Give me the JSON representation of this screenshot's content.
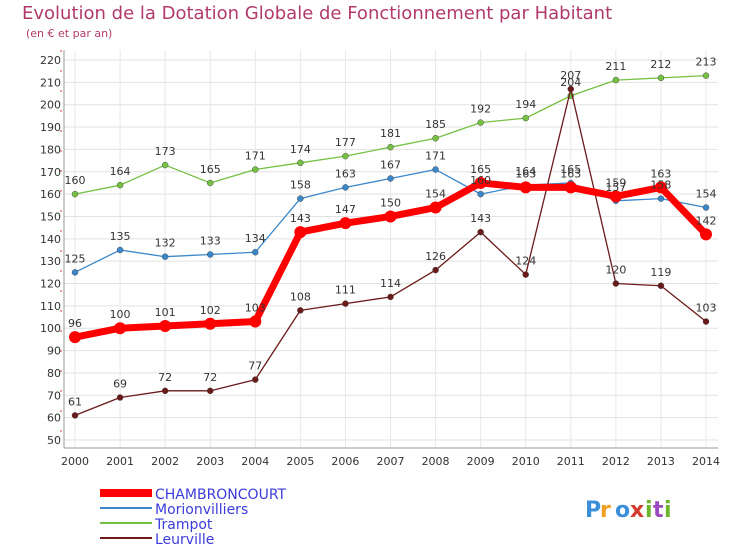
{
  "chart_data": {
    "type": "line",
    "title": "Evolution de la Dotation Globale de Fonctionnement par Habitant",
    "subtitle": "(en € et par an)",
    "xlabel": "",
    "ylabel": "",
    "x": [
      "2000",
      "2001",
      "2002",
      "2003",
      "2004",
      "2005",
      "2006",
      "2007",
      "2008",
      "2009",
      "2010",
      "2011",
      "2012",
      "2013",
      "2014"
    ],
    "ylim": [
      50,
      220
    ],
    "yticks": [
      50,
      60,
      70,
      80,
      90,
      100,
      110,
      120,
      130,
      140,
      150,
      160,
      170,
      180,
      190,
      200,
      210,
      220
    ],
    "grid": true,
    "legend": "bottom-left",
    "series": [
      {
        "name": "CHAMBRONCOURT",
        "color": "#ff0000",
        "values": [
          96,
          100,
          101,
          102,
          103,
          143,
          147,
          150,
          154,
          165,
          163,
          163,
          159,
          163,
          142
        ]
      },
      {
        "name": "Morionvilliers",
        "color": "#3a87c9",
        "values": [
          125,
          135,
          132,
          133,
          134,
          158,
          163,
          167,
          171,
          160,
          164,
          165,
          157,
          158,
          154
        ]
      },
      {
        "name": "Trampot",
        "color": "#76c043",
        "values": [
          160,
          164,
          173,
          165,
          171,
          174,
          177,
          181,
          185,
          192,
          194,
          204,
          211,
          212,
          213
        ]
      },
      {
        "name": "Leurville",
        "color": "#6b1a1a",
        "values": [
          61,
          69,
          72,
          72,
          77,
          108,
          111,
          114,
          126,
          143,
          124,
          207,
          120,
          119,
          103
        ]
      }
    ]
  },
  "logo": {
    "text": "Proxiti",
    "colors": [
      "#3b8ed8",
      "#f0a020",
      "#d23b2b",
      "#6bb42b",
      "#9b4ac0"
    ]
  }
}
